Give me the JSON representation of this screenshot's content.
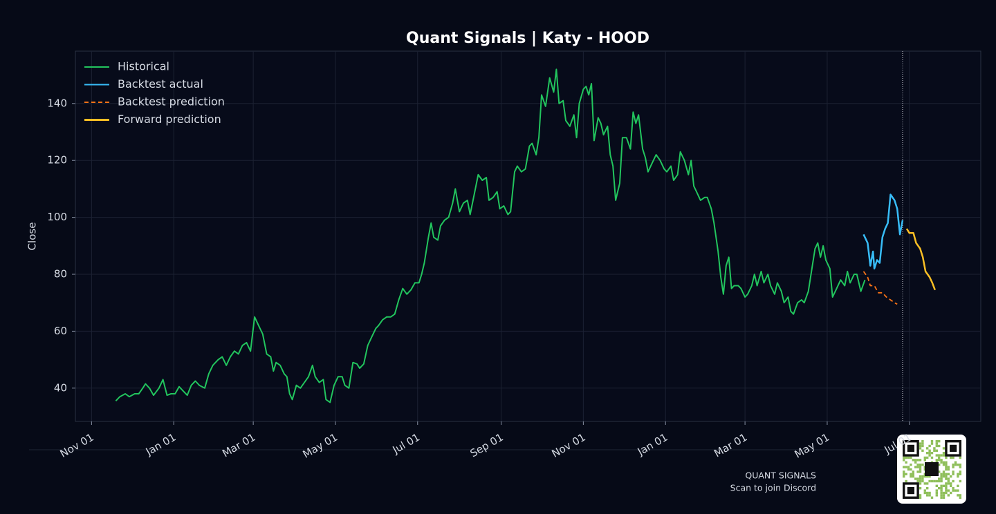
{
  "chart_data": {
    "type": "line",
    "title": "Quant Signals | Katy - HOOD",
    "y_label": "Close",
    "xlim": [
      -12,
      660
    ],
    "ylim": [
      28.3,
      158.4
    ],
    "xticks": [
      {
        "value": 0,
        "label": "Nov 01"
      },
      {
        "value": 61,
        "label": "Jan 01"
      },
      {
        "value": 120,
        "label": "Mar 01"
      },
      {
        "value": 181,
        "label": "May 01"
      },
      {
        "value": 242,
        "label": "Jul 01"
      },
      {
        "value": 304,
        "label": "Sep 01"
      },
      {
        "value": 365,
        "label": "Nov 01"
      },
      {
        "value": 426,
        "label": "Jan 01"
      },
      {
        "value": 485,
        "label": "Mar 01"
      },
      {
        "value": 546,
        "label": "May 01"
      },
      {
        "value": 607,
        "label": "Jul 01"
      }
    ],
    "yticks": [
      40,
      60,
      80,
      100,
      120,
      140
    ],
    "grid": true,
    "legend": "upper left",
    "vline": 602,
    "series": [
      {
        "name": "Historical",
        "color": "#22c55e",
        "dash": false,
        "x": [
          18,
          21,
          25,
          28,
          32,
          35,
          38,
          40,
          43,
          46,
          50,
          53,
          56,
          59,
          62,
          65,
          68,
          71,
          74,
          77,
          80,
          84,
          87,
          90,
          94,
          97,
          100,
          103,
          106,
          109,
          112,
          115,
          118,
          121,
          124,
          127,
          130,
          133,
          135,
          137,
          140,
          143,
          145,
          147,
          149,
          152,
          155,
          158,
          161,
          164,
          166,
          169,
          172,
          174,
          177,
          180,
          183,
          186,
          188,
          191,
          194,
          197,
          199,
          202,
          205,
          208,
          211,
          213,
          216,
          219,
          222,
          225,
          228,
          231,
          234,
          237,
          240,
          243,
          245,
          247,
          250,
          252,
          254,
          257,
          259,
          262,
          265,
          268,
          270,
          273,
          276,
          279,
          281,
          284,
          287,
          290,
          293,
          295,
          298,
          301,
          303,
          306,
          309,
          311,
          314,
          316,
          319,
          322,
          325,
          327,
          330,
          332,
          334,
          337,
          340,
          343,
          345,
          347,
          350,
          352,
          355,
          358,
          360,
          362,
          365,
          367,
          369,
          371,
          373,
          376,
          378,
          380,
          383,
          385,
          387,
          389,
          392,
          394,
          397,
          400,
          402,
          404,
          406,
          409,
          411,
          413,
          416,
          419,
          422,
          425,
          427,
          430,
          432,
          435,
          437,
          440,
          443,
          445,
          447,
          449,
          452,
          455,
          457,
          460,
          462,
          465,
          467,
          469,
          471,
          473,
          475,
          477,
          480,
          482,
          485,
          487,
          490,
          492,
          494,
          497,
          499,
          502,
          504,
          507,
          509,
          512,
          514,
          517,
          519,
          521,
          524,
          527,
          529,
          532,
          535,
          537,
          539,
          541,
          543,
          545,
          548,
          550,
          553,
          556,
          559,
          561,
          563,
          566,
          568,
          571,
          574
        ],
        "values": [
          35.5,
          37,
          38,
          37,
          38,
          38,
          40,
          41.5,
          40,
          37.5,
          40,
          43,
          37.5,
          38,
          38,
          40.5,
          39,
          37.5,
          41,
          42.5,
          41,
          40,
          45,
          48,
          50,
          51,
          48,
          51,
          53,
          52,
          55,
          56,
          53,
          65,
          62,
          59,
          52,
          51,
          46,
          49,
          48,
          45,
          44,
          38,
          36,
          41,
          40,
          42,
          44,
          48,
          44,
          42,
          43,
          36,
          35,
          41,
          44,
          44,
          41,
          40,
          49,
          48.5,
          47,
          48.5,
          55,
          58,
          61,
          62,
          64,
          65,
          65,
          66,
          71,
          75,
          73,
          74.5,
          77,
          77,
          80,
          84,
          93,
          98,
          93,
          92,
          97,
          99,
          100,
          105,
          110,
          102,
          105,
          106,
          101,
          108,
          115,
          113,
          114,
          106,
          107,
          109,
          103,
          104,
          101,
          102,
          116,
          118,
          116,
          117,
          125,
          126,
          122,
          128,
          143,
          139,
          149,
          144,
          152,
          140,
          141,
          134,
          132,
          136,
          128,
          140,
          145,
          146,
          143,
          147,
          127,
          135,
          133,
          129,
          132,
          122,
          118,
          106,
          112,
          128,
          128,
          124,
          137,
          133,
          136,
          124,
          121,
          116,
          119,
          122,
          120,
          117,
          116,
          118,
          113,
          115,
          123,
          120,
          115,
          120,
          111,
          109,
          106,
          107,
          107,
          103,
          98,
          88,
          79,
          73,
          83,
          86,
          75,
          76,
          76,
          75,
          72,
          73,
          76,
          80,
          76,
          81,
          77,
          80,
          76,
          73,
          77,
          74,
          70,
          72,
          67,
          66,
          70,
          71,
          70,
          74,
          83,
          89,
          91,
          86,
          90,
          85,
          82,
          72,
          75,
          78,
          76,
          81,
          77,
          80,
          80,
          74,
          78
        ]
      },
      {
        "name": "Backtest actual",
        "color": "#38bdf8",
        "dash": false,
        "x": [
          573,
          576,
          578,
          580,
          581,
          583,
          585,
          587,
          589,
          591,
          593,
          596,
          598,
          600,
          602
        ],
        "values": [
          94,
          91,
          83,
          88,
          82,
          85,
          84,
          93,
          96,
          98,
          108,
          106,
          103,
          94,
          99
        ]
      },
      {
        "name": "Backtest prediction",
        "color": "#f97316",
        "dash": true,
        "x": [
          573,
          576,
          578,
          581,
          584,
          587,
          590,
          593,
          596,
          598
        ],
        "values": [
          81,
          79,
          76,
          76,
          73.5,
          73.5,
          72,
          71,
          70,
          69.5
        ]
      },
      {
        "name": "Forward prediction",
        "color": "#fbbf24",
        "dash": false,
        "x": [
          605,
          607,
          610,
          612,
          615,
          617,
          619,
          622,
          624,
          626
        ],
        "values": [
          96,
          94.5,
          94.5,
          91,
          89,
          86,
          81,
          79,
          77,
          74.5
        ]
      }
    ],
    "footer": {
      "brand": "QUANT SIGNALS",
      "cta": "Scan to join Discord"
    }
  }
}
